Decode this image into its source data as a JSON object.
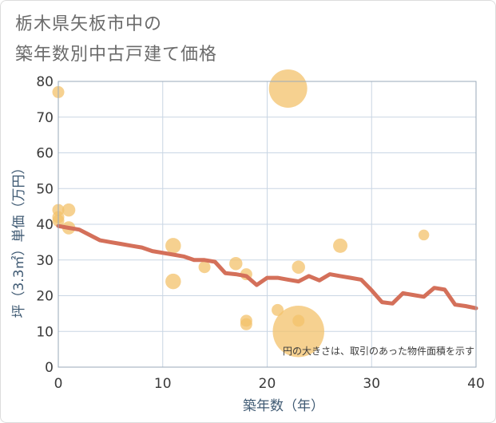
{
  "title_line1": "栃木県矢板市中の",
  "title_line2": "築年数別中古戸建て価格",
  "colors": {
    "line": "#d4705a",
    "bubble": "#f3c26b",
    "grid": "#c9d6e4",
    "plot_border": "#9aaaba",
    "axis_text": "#3f5a73"
  },
  "chart_data": {
    "type": "scatter",
    "xlabel": "築年数（年）",
    "ylabel": "坪（3.3㎡）単価（万円）",
    "xlim": [
      0,
      40
    ],
    "ylim": [
      0,
      80
    ],
    "xticks": [
      0,
      10,
      20,
      30,
      40
    ],
    "yticks": [
      0,
      10,
      20,
      30,
      40,
      50,
      60,
      70,
      80
    ],
    "grid": true,
    "note": "円の大きさは、取引のあった物件面積を示す",
    "bubbles": [
      {
        "x": 0,
        "y": 77,
        "size": 1
      },
      {
        "x": 0,
        "y": 44,
        "size": 1
      },
      {
        "x": 0,
        "y": 42,
        "size": 1
      },
      {
        "x": 0,
        "y": 41,
        "size": 1
      },
      {
        "x": 1,
        "y": 44,
        "size": 1.1
      },
      {
        "x": 1,
        "y": 39,
        "size": 1.1
      },
      {
        "x": 11,
        "y": 34,
        "size": 1.3
      },
      {
        "x": 11,
        "y": 24,
        "size": 1.3
      },
      {
        "x": 14,
        "y": 28,
        "size": 1
      },
      {
        "x": 17,
        "y": 29,
        "size": 1.1
      },
      {
        "x": 18,
        "y": 26,
        "size": 1
      },
      {
        "x": 18,
        "y": 13,
        "size": 1
      },
      {
        "x": 18,
        "y": 12,
        "size": 1
      },
      {
        "x": 21,
        "y": 16,
        "size": 1
      },
      {
        "x": 22,
        "y": 78,
        "size": 3.2
      },
      {
        "x": 23,
        "y": 28,
        "size": 1.1
      },
      {
        "x": 23,
        "y": 13,
        "size": 1
      },
      {
        "x": 23,
        "y": 10,
        "size": 4.3
      },
      {
        "x": 27,
        "y": 34,
        "size": 1.2
      },
      {
        "x": 35,
        "y": 37,
        "size": 0.9
      }
    ],
    "trend": {
      "x": [
        0,
        1,
        2,
        3,
        4,
        5,
        6,
        7,
        8,
        9,
        10,
        11,
        12,
        13,
        14,
        15,
        16,
        17,
        18,
        19,
        20,
        21,
        22,
        23,
        24,
        25,
        26,
        27,
        28,
        29,
        30,
        31,
        32,
        33,
        34,
        35,
        36,
        37,
        38,
        39,
        40
      ],
      "y": [
        39.5,
        39,
        38.5,
        37,
        35.5,
        35,
        34.5,
        34,
        33.5,
        32.5,
        32,
        31.5,
        31,
        30,
        30,
        29.5,
        26.3,
        26,
        25.5,
        23,
        25,
        25,
        24.5,
        24,
        25.5,
        24.3,
        26,
        25.5,
        25,
        24.5,
        21.5,
        18.2,
        17.8,
        20.7,
        20.2,
        19.7,
        22.2,
        21.7,
        17.5,
        17.1,
        16.5
      ]
    }
  }
}
